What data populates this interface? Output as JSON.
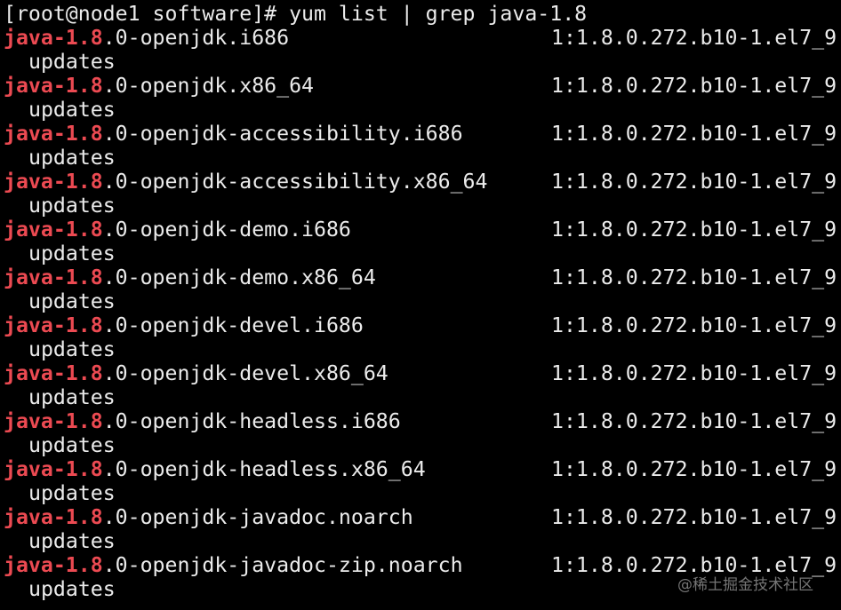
{
  "prompt": "[root@node1 software]# yum list | grep java-1.8",
  "match": "java-1.8",
  "highlight_color": "#ec4a52",
  "packages": [
    {
      "rest": ".0-openjdk.i686",
      "version": "1:1.8.0.272.b10-1.el7_9",
      "repo": "updates"
    },
    {
      "rest": ".0-openjdk.x86_64",
      "version": "1:1.8.0.272.b10-1.el7_9",
      "repo": "updates"
    },
    {
      "rest": ".0-openjdk-accessibility.i686",
      "version": "1:1.8.0.272.b10-1.el7_9",
      "repo": "updates"
    },
    {
      "rest": ".0-openjdk-accessibility.x86_64",
      "version": "1:1.8.0.272.b10-1.el7_9",
      "repo": "updates"
    },
    {
      "rest": ".0-openjdk-demo.i686",
      "version": "1:1.8.0.272.b10-1.el7_9",
      "repo": "updates"
    },
    {
      "rest": ".0-openjdk-demo.x86_64",
      "version": "1:1.8.0.272.b10-1.el7_9",
      "repo": "updates"
    },
    {
      "rest": ".0-openjdk-devel.i686",
      "version": "1:1.8.0.272.b10-1.el7_9",
      "repo": "updates"
    },
    {
      "rest": ".0-openjdk-devel.x86_64",
      "version": "1:1.8.0.272.b10-1.el7_9",
      "repo": "updates"
    },
    {
      "rest": ".0-openjdk-headless.i686",
      "version": "1:1.8.0.272.b10-1.el7_9",
      "repo": "updates"
    },
    {
      "rest": ".0-openjdk-headless.x86_64",
      "version": "1:1.8.0.272.b10-1.el7_9",
      "repo": "updates"
    },
    {
      "rest": ".0-openjdk-javadoc.noarch",
      "version": "1:1.8.0.272.b10-1.el7_9",
      "repo": "updates"
    },
    {
      "rest": ".0-openjdk-javadoc-zip.noarch",
      "version": "1:1.8.0.272.b10-1.el7_9",
      "repo": "updates"
    }
  ],
  "watermark": "@稀土掘金技术社区"
}
